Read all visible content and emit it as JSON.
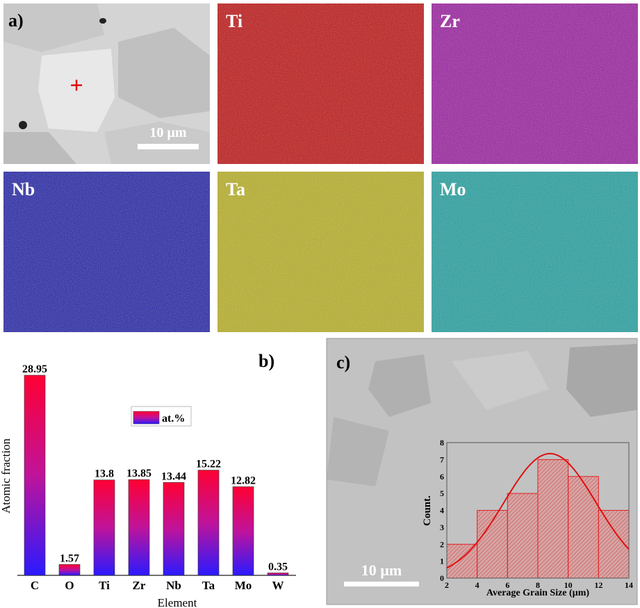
{
  "panels": {
    "a": {
      "label": "a)",
      "scale_bar": "10 µm",
      "marker": "+",
      "marker_color": "#e00000"
    },
    "maps": [
      {
        "element": "Ti",
        "color": "#c01010"
      },
      {
        "element": "Zr",
        "color": "#9a1aa0"
      },
      {
        "element": "Nb",
        "color": "#2020a8"
      },
      {
        "element": "Ta",
        "color": "#b8b020"
      },
      {
        "element": "Mo",
        "color": "#20a0a0"
      }
    ],
    "b": {
      "label": "b)"
    },
    "c": {
      "label": "c)",
      "scale_bar": "10 µm"
    }
  },
  "chart_data": [
    {
      "type": "bar",
      "xlabel": "Element",
      "ylabel": "Atomic fraction",
      "legend": {
        "entries": [
          "at.%"
        ],
        "placement": "center"
      },
      "categories": [
        "C",
        "O",
        "Ti",
        "Zr",
        "Nb",
        "Ta",
        "Mo",
        "W"
      ],
      "values": [
        28.95,
        1.57,
        13.8,
        13.85,
        13.44,
        15.22,
        12.82,
        0.35
      ],
      "value_labels": [
        "28.95",
        "1.57",
        "13.8",
        "13.85",
        "13.44",
        "15.22",
        "12.82",
        "0.35"
      ],
      "ylim": [
        0,
        30
      ],
      "gradient": {
        "top": "#ff0033",
        "bottom": "#2a1aff"
      },
      "grid": false
    },
    {
      "type": "bar",
      "subtype": "histogram",
      "xlabel": "Average Grain Size (µm)",
      "ylabel": "Count.",
      "bins": [
        [
          2,
          4
        ],
        [
          4,
          6
        ],
        [
          6,
          8
        ],
        [
          8,
          10
        ],
        [
          10,
          12
        ],
        [
          12,
          14
        ]
      ],
      "values": [
        2,
        4,
        5,
        7,
        6,
        4
      ],
      "xlim": [
        2,
        14
      ],
      "ylim": [
        0,
        8
      ],
      "xticks": [
        2,
        4,
        6,
        8,
        10,
        12,
        14
      ],
      "yticks": [
        0,
        1,
        2,
        3,
        4,
        5,
        6,
        7,
        8
      ],
      "fit": {
        "type": "gaussian",
        "peak": 7.35,
        "center": 8.8,
        "sigma": 3.04
      },
      "color": "#e02020",
      "grid": false
    }
  ]
}
